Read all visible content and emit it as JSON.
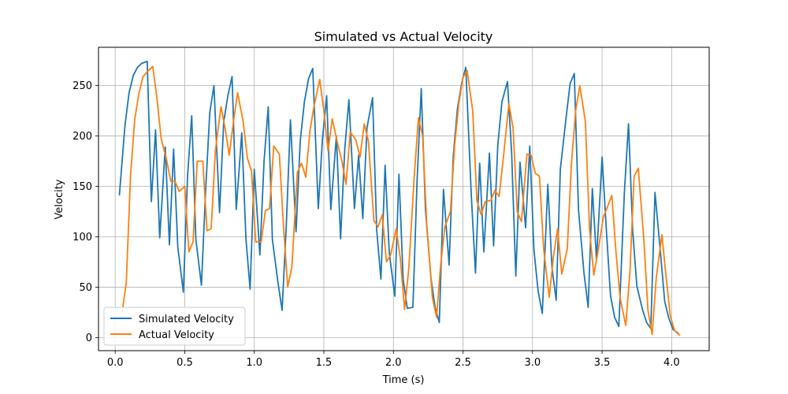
{
  "chart_data": {
    "type": "line",
    "title": "Simulated vs Actual Velocity",
    "xlabel": "Time (s)",
    "ylabel": "Velocity",
    "xlim": [
      -0.12,
      4.27
    ],
    "ylim": [
      -13,
      288
    ],
    "xticks": [
      0.0,
      0.5,
      1.0,
      1.5,
      2.0,
      2.5,
      3.0,
      3.5,
      4.0
    ],
    "xtick_labels": [
      "0.0",
      "0.5",
      "1.0",
      "1.5",
      "2.0",
      "2.5",
      "3.0",
      "3.5",
      "4.0"
    ],
    "yticks": [
      0,
      50,
      100,
      150,
      200,
      250
    ],
    "ytick_labels": [
      "0",
      "50",
      "100",
      "150",
      "200",
      "250"
    ],
    "grid": true,
    "legend_position": "lower-left",
    "series": [
      {
        "name": "Simulated Velocity",
        "color": "#1f77b4",
        "x": [
          0.03,
          0.07,
          0.1,
          0.13,
          0.16,
          0.19,
          0.23,
          0.26,
          0.29,
          0.32,
          0.36,
          0.39,
          0.42,
          0.45,
          0.49,
          0.52,
          0.55,
          0.58,
          0.62,
          0.65,
          0.68,
          0.71,
          0.75,
          0.78,
          0.81,
          0.84,
          0.87,
          0.91,
          0.94,
          0.97,
          1.0,
          1.04,
          1.07,
          1.1,
          1.13,
          1.17,
          1.2,
          1.23,
          1.26,
          1.3,
          1.33,
          1.36,
          1.39,
          1.42,
          1.46,
          1.49,
          1.52,
          1.55,
          1.59,
          1.62,
          1.65,
          1.68,
          1.72,
          1.75,
          1.78,
          1.81,
          1.85,
          1.88,
          1.91,
          1.94,
          1.97,
          2.01,
          2.04,
          2.07,
          2.1,
          2.14,
          2.17,
          2.2,
          2.23,
          2.27,
          2.3,
          2.33,
          2.36,
          2.4,
          2.43,
          2.46,
          2.49,
          2.52,
          2.56,
          2.59,
          2.62,
          2.65,
          2.69,
          2.72,
          2.75,
          2.78,
          2.82,
          2.85,
          2.88,
          2.91,
          2.95,
          2.98,
          3.01,
          3.04,
          3.07,
          3.11,
          3.14,
          3.17,
          3.2,
          3.24,
          3.27,
          3.3,
          3.33,
          3.37,
          3.4,
          3.43,
          3.46,
          3.5,
          3.53,
          3.56,
          3.59,
          3.62,
          3.66,
          3.69,
          3.72,
          3.75,
          3.79,
          3.82,
          3.85,
          3.88,
          3.92,
          3.95,
          3.98,
          4.01,
          4.05
        ],
        "values": [
          141,
          210,
          243,
          260,
          268,
          272,
          274,
          135,
          206,
          99,
          189,
          92,
          187,
          90,
          45,
          160,
          220,
          97,
          52,
          145,
          223,
          250,
          124,
          214,
          240,
          259,
          127,
          203,
          98,
          48,
          167,
          82,
          175,
          229,
          97,
          55,
          27,
          111,
          216,
          105,
          195,
          234,
          257,
          267,
          128,
          197,
          240,
          127,
          200,
          98,
          187,
          236,
          128,
          181,
          118,
          208,
          238,
          106,
          58,
          171,
          84,
          41,
          162,
          58,
          29,
          30,
          156,
          247,
          127,
          59,
          30,
          15,
          147,
          72,
          180,
          227,
          252,
          268,
          141,
          64,
          173,
          85,
          183,
          91,
          191,
          234,
          254,
          183,
          61,
          174,
          109,
          190,
          87,
          46,
          24,
          152,
          69,
          37,
          167,
          217,
          252,
          262,
          127,
          64,
          30,
          148,
          77,
          179,
          108,
          42,
          20,
          11,
          143,
          212,
          106,
          51,
          28,
          15,
          9,
          144,
          84,
          36,
          19,
          8,
          4
        ],
        "values_tail_note": ""
      },
      {
        "name": "Actual Velocity",
        "color": "#ff7f0e",
        "x": [
          0.05,
          0.08,
          0.11,
          0.14,
          0.17,
          0.2,
          0.24,
          0.27,
          0.3,
          0.33,
          0.37,
          0.4,
          0.43,
          0.46,
          0.5,
          0.53,
          0.56,
          0.59,
          0.63,
          0.66,
          0.69,
          0.72,
          0.76,
          0.79,
          0.82,
          0.85,
          0.88,
          0.92,
          0.95,
          0.98,
          1.01,
          1.05,
          1.08,
          1.11,
          1.14,
          1.18,
          1.21,
          1.24,
          1.27,
          1.31,
          1.34,
          1.37,
          1.4,
          1.43,
          1.47,
          1.5,
          1.53,
          1.56,
          1.6,
          1.63,
          1.66,
          1.69,
          1.73,
          1.76,
          1.79,
          1.82,
          1.86,
          1.89,
          1.92,
          1.95,
          1.98,
          2.02,
          2.05,
          2.08,
          2.11,
          2.15,
          2.18,
          2.21,
          2.24,
          2.28,
          2.31,
          2.34,
          2.37,
          2.41,
          2.44,
          2.47,
          2.5,
          2.53,
          2.57,
          2.6,
          2.63,
          2.66,
          2.7,
          2.73,
          2.76,
          2.79,
          2.83,
          2.86,
          2.89,
          2.92,
          2.96,
          2.99,
          3.02,
          3.05,
          3.08,
          3.12,
          3.15,
          3.18,
          3.21,
          3.25,
          3.28,
          3.31,
          3.34,
          3.38,
          3.41,
          3.44,
          3.47,
          3.51,
          3.54,
          3.57,
          3.6,
          3.63,
          3.67,
          3.7,
          3.73,
          3.76,
          3.8,
          3.83,
          3.86,
          3.89,
          3.93,
          3.96,
          3.99,
          4.02,
          4.06
        ],
        "values": [
          25,
          55,
          160,
          216,
          242,
          259,
          265,
          269,
          238,
          198,
          176,
          155,
          155,
          145,
          150,
          85,
          95,
          175,
          175,
          106,
          108,
          185,
          229,
          208,
          181,
          214,
          243,
          214,
          178,
          165,
          95,
          95,
          126,
          128,
          190,
          182,
          110,
          50,
          70,
          164,
          173,
          159,
          205,
          230,
          256,
          225,
          185,
          217,
          192,
          175,
          152,
          204,
          196,
          179,
          212,
          195,
          116,
          110,
          122,
          75,
          82,
          108,
          78,
          28,
          68,
          160,
          218,
          200,
          112,
          40,
          20,
          73,
          110,
          125,
          190,
          232,
          258,
          265,
          225,
          136,
          122,
          135,
          136,
          146,
          140,
          178,
          232,
          208,
          125,
          115,
          182,
          181,
          163,
          160,
          88,
          40,
          80,
          108,
          63,
          88,
          173,
          225,
          250,
          214,
          107,
          62,
          85,
          120,
          130,
          141,
          85,
          39,
          12,
          65,
          160,
          168,
          98,
          27,
          3,
          60,
          102,
          60,
          22,
          7,
          2
        ],
        "values_tail_note": ""
      }
    ]
  }
}
